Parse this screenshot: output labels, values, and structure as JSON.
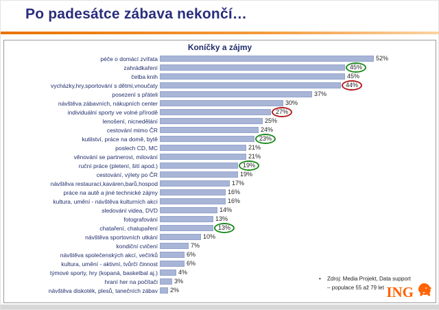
{
  "slide": {
    "title": "Po padesátce zábava nekončí…"
  },
  "source": {
    "bullet": "•",
    "line1": "Zdroj: Media Projekt, Data support",
    "line2": "– populace 55 až 79 let"
  },
  "logo": {
    "text": "ING"
  },
  "colors": {
    "accent_orange": "#e87200",
    "title_navy": "#2a2d7c",
    "bar_fill": "#a8b5d7",
    "circle_green": "#1f8a1f",
    "circle_red": "#b01c1c",
    "logo_orange": "#ff6200"
  },
  "chart_data": {
    "type": "bar",
    "orientation": "horizontal",
    "title": "Koníčky a zájmy",
    "xlabel": "",
    "ylabel": "",
    "xlim": [
      0,
      55
    ],
    "value_suffix": "%",
    "grid": false,
    "legend": false,
    "categories": [
      "péče o domácí zvířata",
      "zahrádkaření",
      "četba knih",
      "vycházky,hry,sportování s dětmi,vnoučaty",
      "posezení s přáteli",
      "návštěva zábavních, nákupních center",
      "individuální sporty ve volné přírodě",
      "lenošení, nicnedělání",
      "cestování mimo ČR",
      "kutilství, práce na domě, bytě",
      "poslech CD, MC",
      "věnování se partnerovi, milování",
      "ruční práce (pletení, šití apod.)",
      "cestování, výlety po ČR",
      "návštěva restaurací,kaváren,barů,hospod",
      "práce na autě a jiné technické zájmy",
      "kultura, umění - návštěva kulturních akcí",
      "sledování videa, DVD",
      "fotografování",
      "chataření, chalupaření",
      "návštěva sportovních utkání",
      "kondiční cvičení",
      "návštěva společenských akcí, večírků",
      "kultura, umění - aktivní, tvůrčí činnost",
      "týmové sporty, hry (kopaná, basketbal aj.)",
      "hraní her na počítači",
      "návštěva diskoték, plesů, tanečních zábav"
    ],
    "values": [
      52,
      45,
      45,
      44,
      37,
      30,
      27,
      25,
      24,
      23,
      21,
      21,
      19,
      19,
      17,
      16,
      16,
      14,
      13,
      13,
      10,
      7,
      6,
      6,
      4,
      3,
      2
    ],
    "highlights": [
      {
        "index": 1,
        "color": "green"
      },
      {
        "index": 3,
        "color": "red"
      },
      {
        "index": 6,
        "color": "red"
      },
      {
        "index": 9,
        "color": "green"
      },
      {
        "index": 12,
        "color": "green"
      },
      {
        "index": 19,
        "color": "green"
      }
    ]
  }
}
